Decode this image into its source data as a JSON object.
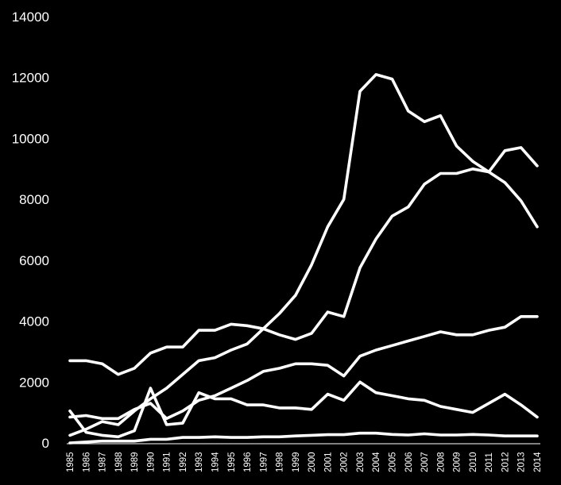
{
  "chart_data": {
    "type": "line",
    "title": "",
    "xlabel": "",
    "ylabel": "",
    "ylim": [
      0,
      14000
    ],
    "yticks": [
      0,
      2000,
      4000,
      6000,
      8000,
      10000,
      12000,
      14000
    ],
    "grid": false,
    "legend": "none",
    "line_color": "#ffffff",
    "background_color": "#000000",
    "x": [
      "1985",
      "1986",
      "1987",
      "1988",
      "1989",
      "1990",
      "1991",
      "1992",
      "1993",
      "1994",
      "1995",
      "1996",
      "1997",
      "1998",
      "1999",
      "2000",
      "2001",
      "2002",
      "2003",
      "2004",
      "2005",
      "2006",
      "2007",
      "2008",
      "2009",
      "2010",
      "2011",
      "2012",
      "2013",
      "2014"
    ],
    "series": [
      {
        "values": [
          250,
          450,
          700,
          600,
          1050,
          1450,
          1800,
          2250,
          2700,
          2800,
          3050,
          3250,
          3750,
          4250,
          4850,
          5850,
          7100,
          8000,
          11550,
          12100,
          11950,
          10900,
          10550,
          10750,
          9750,
          9250,
          8900,
          8550,
          7950,
          7100
        ]
      },
      {
        "values": [
          850,
          900,
          800,
          800,
          1100,
          1300,
          800,
          1050,
          1400,
          1550,
          1800,
          2050,
          2350,
          2450,
          2600,
          2600,
          2550,
          2200,
          2850,
          3050,
          3200,
          3350,
          3500,
          3650,
          3550,
          3550,
          3700,
          3800,
          4150,
          4150
        ]
      },
      {
        "values": [
          2700,
          2700,
          2600,
          2250,
          2450,
          2950,
          3150,
          3150,
          3700,
          3700,
          3900,
          3850,
          3750,
          3550,
          3400,
          3600,
          4300,
          4150,
          5750,
          6700,
          7450,
          7750,
          8500,
          8850,
          8850,
          9000,
          8900,
          9600,
          9700,
          9100
        ]
      },
      {
        "values": [
          1050,
          350,
          250,
          200,
          400,
          1800,
          600,
          650,
          1650,
          1450,
          1450,
          1250,
          1250,
          1150,
          1150,
          1100,
          1600,
          1400,
          2000,
          1650,
          1550,
          1450,
          1400,
          1200,
          1100,
          1000,
          1300,
          1600,
          1250,
          850
        ]
      },
      {
        "values": [
          0,
          30,
          60,
          60,
          60,
          120,
          120,
          180,
          180,
          200,
          180,
          180,
          200,
          200,
          230,
          250,
          270,
          270,
          320,
          320,
          280,
          260,
          300,
          260,
          260,
          280,
          260,
          230,
          230,
          230
        ]
      }
    ]
  }
}
